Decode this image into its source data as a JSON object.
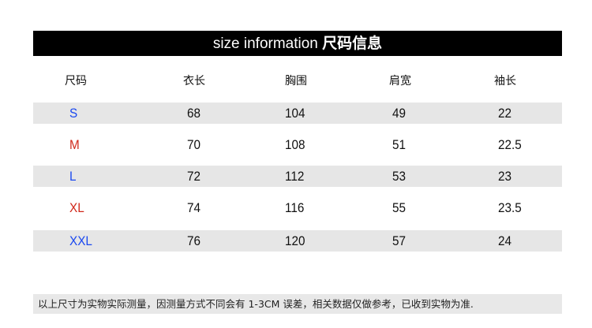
{
  "title": {
    "en": "size information",
    "zh": "尺码信息"
  },
  "headers": [
    "尺码",
    "衣长",
    "胸围",
    "肩宽",
    "袖长"
  ],
  "rows": [
    {
      "size": "S",
      "color": "#1a48f0",
      "values": [
        "68",
        "104",
        "49",
        "22"
      ]
    },
    {
      "size": "M",
      "color": "#d0281a",
      "values": [
        "70",
        "108",
        "51",
        "22.5"
      ]
    },
    {
      "size": "L",
      "color": "#1a48f0",
      "values": [
        "72",
        "112",
        "53",
        "23"
      ]
    },
    {
      "size": "XL",
      "color": "#d0281a",
      "values": [
        "74",
        "116",
        "55",
        "23.5"
      ]
    },
    {
      "size": "XXL",
      "color": "#1a48f0",
      "values": [
        "76",
        "120",
        "57",
        "24"
      ]
    }
  ],
  "footer": "以上尺寸为实物实际测量，因测量方式不同会有 1-3CM 误差，相关数据仅做参考，已收到实物为准."
}
